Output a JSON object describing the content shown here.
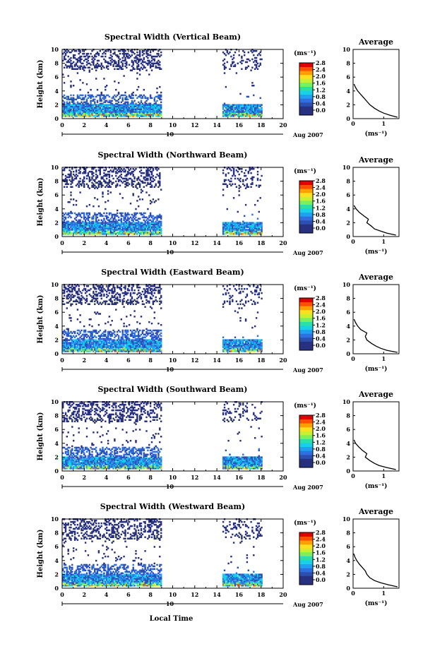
{
  "figure": {
    "xlabel": "Local Time",
    "date_label": "10",
    "month_label": "Aug 2007",
    "ylabel": "Height (km)",
    "colorbar_unit": "(ms⁻¹)",
    "avg_title": "Average",
    "avg_xlabel": "(ms⁻¹)",
    "colorbar_ticks": [
      "0.0",
      "0.4",
      "0.8",
      "1.2",
      "1.6",
      "2.0",
      "2.4",
      "2.8"
    ],
    "colors": {
      "scale": [
        "#283080",
        "#2c4fb0",
        "#2f6fe0",
        "#1fa0f0",
        "#18d0e8",
        "#28e0a8",
        "#78f060",
        "#c8f030",
        "#ffe020",
        "#ffa000",
        "#ff5000",
        "#e00000"
      ]
    }
  },
  "chart_data": [
    {
      "type": "heatmap",
      "title": "Spectral Width (Vertical Beam)",
      "xlim": [
        0,
        20
      ],
      "ylim": [
        0,
        10
      ],
      "xticks": [
        0,
        2,
        4,
        6,
        8,
        10,
        12,
        14,
        16,
        18,
        20
      ],
      "yticks": [
        0,
        2,
        4,
        6,
        8,
        10
      ],
      "clim": [
        0,
        2.8
      ],
      "data_periods_hours": [
        [
          0,
          9
        ],
        [
          14.5,
          18
        ]
      ],
      "average_profile": {
        "title": "Average",
        "xlabel": "(ms⁻¹)",
        "xlim": [
          0,
          1.5
        ],
        "ylim": [
          0,
          10
        ],
        "xticks": [
          0,
          1
        ],
        "yticks": [
          0,
          2,
          4,
          6,
          8,
          10
        ],
        "height_km": [
          0.2,
          0.5,
          0.8,
          1.1,
          1.5,
          2.0,
          2.5,
          3.0,
          3.5,
          4.0,
          4.5,
          5.0
        ],
        "width_ms": [
          1.45,
          1.2,
          1.0,
          0.85,
          0.7,
          0.55,
          0.45,
          0.35,
          0.25,
          0.15,
          0.08,
          0.03
        ]
      }
    },
    {
      "type": "heatmap",
      "title": "Spectral Width (Northward Beam)",
      "xlim": [
        0,
        20
      ],
      "ylim": [
        0,
        10
      ],
      "xticks": [
        0,
        2,
        4,
        6,
        8,
        10,
        12,
        14,
        16,
        18,
        20
      ],
      "yticks": [
        0,
        2,
        4,
        6,
        8,
        10
      ],
      "clim": [
        0,
        2.8
      ],
      "data_periods_hours": [
        [
          0,
          9
        ],
        [
          14.5,
          18
        ]
      ],
      "average_profile": {
        "title": "Average",
        "xlabel": "(ms⁻¹)",
        "xlim": [
          0,
          1.5
        ],
        "ylim": [
          0,
          10
        ],
        "xticks": [
          0,
          1
        ],
        "yticks": [
          0,
          2,
          4,
          6,
          8,
          10
        ],
        "height_km": [
          0.2,
          0.5,
          0.8,
          1.1,
          1.5,
          2.0,
          2.5,
          3.0,
          3.5,
          4.0,
          4.5
        ],
        "width_ms": [
          1.4,
          1.1,
          0.9,
          0.7,
          0.6,
          0.45,
          0.5,
          0.35,
          0.2,
          0.1,
          0.03
        ]
      }
    },
    {
      "type": "heatmap",
      "title": "Spectral Width (Eastward Beam)",
      "xlim": [
        0,
        20
      ],
      "ylim": [
        0,
        10
      ],
      "xticks": [
        0,
        2,
        4,
        6,
        8,
        10,
        12,
        14,
        16,
        18,
        20
      ],
      "yticks": [
        0,
        2,
        4,
        6,
        8,
        10
      ],
      "clim": [
        0,
        2.8
      ],
      "data_periods_hours": [
        [
          0,
          9
        ],
        [
          14.5,
          18
        ]
      ],
      "average_profile": {
        "title": "Average",
        "xlabel": "(ms⁻¹)",
        "xlim": [
          0,
          1.5
        ],
        "ylim": [
          0,
          10
        ],
        "xticks": [
          0,
          1
        ],
        "yticks": [
          0,
          2,
          4,
          6,
          8,
          10
        ],
        "height_km": [
          0.2,
          0.5,
          0.8,
          1.1,
          1.5,
          2.0,
          2.5,
          3.0,
          3.5,
          4.0,
          4.5,
          5.0
        ],
        "width_ms": [
          1.45,
          1.1,
          0.9,
          0.75,
          0.6,
          0.45,
          0.4,
          0.45,
          0.25,
          0.15,
          0.08,
          0.03
        ]
      }
    },
    {
      "type": "heatmap",
      "title": "Spectral Width (Southward Beam)",
      "xlim": [
        0,
        20
      ],
      "ylim": [
        0,
        10
      ],
      "xticks": [
        0,
        2,
        4,
        6,
        8,
        10,
        12,
        14,
        16,
        18,
        20
      ],
      "yticks": [
        0,
        2,
        4,
        6,
        8,
        10
      ],
      "clim": [
        0,
        2.8
      ],
      "data_periods_hours": [
        [
          0,
          9
        ],
        [
          14.5,
          18
        ]
      ],
      "average_profile": {
        "title": "Average",
        "xlabel": "(ms⁻¹)",
        "xlim": [
          0,
          1.5
        ],
        "ylim": [
          0,
          10
        ],
        "xticks": [
          0,
          1
        ],
        "yticks": [
          0,
          2,
          4,
          6,
          8,
          10
        ],
        "height_km": [
          0.2,
          0.5,
          0.8,
          1.1,
          1.5,
          2.0,
          2.5,
          3.0,
          3.5,
          4.0,
          4.5
        ],
        "width_ms": [
          1.4,
          1.1,
          0.85,
          0.7,
          0.55,
          0.4,
          0.45,
          0.3,
          0.18,
          0.08,
          0.03
        ]
      }
    },
    {
      "type": "heatmap",
      "title": "Spectral Width (Westward Beam)",
      "xlim": [
        0,
        20
      ],
      "ylim": [
        0,
        10
      ],
      "xticks": [
        0,
        2,
        4,
        6,
        8,
        10,
        12,
        14,
        16,
        18,
        20
      ],
      "yticks": [
        0,
        2,
        4,
        6,
        8,
        10
      ],
      "clim": [
        0,
        2.8
      ],
      "data_periods_hours": [
        [
          0,
          9
        ],
        [
          14.5,
          18
        ]
      ],
      "average_profile": {
        "title": "Average",
        "xlabel": "(ms⁻¹)",
        "xlim": [
          0,
          1.5
        ],
        "ylim": [
          0,
          10
        ],
        "xticks": [
          0,
          1
        ],
        "yticks": [
          0,
          2,
          4,
          6,
          8,
          10
        ],
        "height_km": [
          0.2,
          0.5,
          0.8,
          1.1,
          1.5,
          2.0,
          2.5,
          3.0,
          3.5,
          4.0,
          4.5,
          5.0
        ],
        "width_ms": [
          1.45,
          1.15,
          0.9,
          0.7,
          0.55,
          0.45,
          0.4,
          0.3,
          0.2,
          0.12,
          0.06,
          0.02
        ]
      }
    }
  ]
}
